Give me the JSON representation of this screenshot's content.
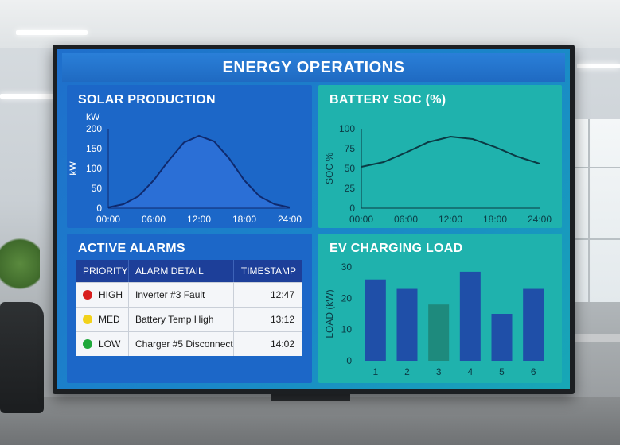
{
  "dashboard": {
    "title": "ENERGY OPERATIONS",
    "colors": {
      "solar_panel": "#1c67c8",
      "battery_panel": "#1fb2ad",
      "alarm_high": "#d81e1e",
      "alarm_med": "#f2d21b",
      "alarm_low": "#1ea83a",
      "ev_bar_blue": "#1f4fa8",
      "ev_bar_teal": "#1e8a7d"
    }
  },
  "solar": {
    "title": "SOLAR PRODUCTION",
    "ylabel": "kW",
    "yunit_top": "kW",
    "chart_data": {
      "type": "area",
      "x": [
        "00:00",
        "06:00",
        "12:00",
        "18:00",
        "24:00"
      ],
      "ylim": [
        0,
        200
      ],
      "yticks": [
        "0",
        "50",
        "100",
        "150",
        "200"
      ],
      "points": [
        [
          0,
          2
        ],
        [
          2,
          10
        ],
        [
          4,
          30
        ],
        [
          6,
          70
        ],
        [
          8,
          120
        ],
        [
          10,
          165
        ],
        [
          12,
          182
        ],
        [
          14,
          168
        ],
        [
          16,
          125
        ],
        [
          18,
          70
        ],
        [
          20,
          30
        ],
        [
          22,
          10
        ],
        [
          24,
          2
        ]
      ]
    }
  },
  "battery": {
    "title": "BATTERY SOC (%)",
    "ylabel": "SOC %",
    "chart_data": {
      "type": "line",
      "x": [
        "00:00",
        "06:00",
        "12:00",
        "18:00",
        "24:00"
      ],
      "ylim": [
        0,
        100
      ],
      "yticks": [
        "0",
        "25",
        "50",
        "75",
        "100"
      ],
      "points": [
        [
          0,
          52
        ],
        [
          3,
          58
        ],
        [
          6,
          70
        ],
        [
          9,
          83
        ],
        [
          12,
          90
        ],
        [
          15,
          87
        ],
        [
          18,
          77
        ],
        [
          21,
          65
        ],
        [
          24,
          56
        ]
      ]
    }
  },
  "alarms": {
    "title": "ACTIVE ALARMS",
    "headers": [
      "PRIORITY",
      "ALARM DETAIL",
      "TIMESTAMP"
    ],
    "rows": [
      {
        "priority": "HIGH",
        "detail": "Inverter #3 Fault",
        "time": "12:47",
        "color": "#d81e1e"
      },
      {
        "priority": "MED",
        "detail": "Battery Temp High",
        "time": "13:12",
        "color": "#f2d21b"
      },
      {
        "priority": "LOW",
        "detail": "Charger #5 Disconnect",
        "time": "14:02",
        "color": "#1ea83a"
      }
    ]
  },
  "ev": {
    "title": "EV CHARGING LOAD",
    "ylabel": "LOAD (kW)",
    "chart_data": {
      "type": "bar",
      "categories": [
        "1",
        "2",
        "3",
        "4",
        "5",
        "6"
      ],
      "values": [
        26,
        23,
        18,
        28.5,
        15,
        23
      ],
      "ylim": [
        0,
        30
      ],
      "yticks": [
        "0",
        "10",
        "20",
        "30"
      ],
      "highlight_index": 2
    }
  }
}
